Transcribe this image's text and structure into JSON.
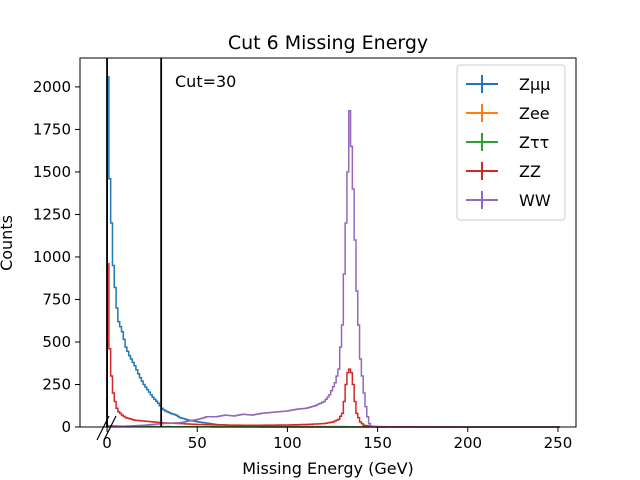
{
  "chart_data": {
    "type": "line",
    "title": "Cut 6 Missing Energy",
    "xlabel": "Missing Energy (GeV)",
    "ylabel": "Counts",
    "xlim": [
      -15,
      260
    ],
    "ylim": [
      0,
      2170
    ],
    "xticks": [
      0,
      50,
      100,
      150,
      200,
      250
    ],
    "yticks": [
      0,
      250,
      500,
      750,
      1000,
      1250,
      1500,
      1750,
      2000
    ],
    "grid": false,
    "legend_position": "top-right",
    "annotation": "Cut=30",
    "cut_lines": [
      0,
      30
    ],
    "series": [
      {
        "name": "Zμμ",
        "color": "#1f77b4",
        "points": [
          [
            0,
            2060
          ],
          [
            0.5,
            1700
          ],
          [
            1,
            1460
          ],
          [
            2,
            1200
          ],
          [
            3,
            950
          ],
          [
            4,
            820
          ],
          [
            5,
            700
          ],
          [
            6,
            620
          ],
          [
            8,
            560
          ],
          [
            10,
            470
          ],
          [
            12,
            420
          ],
          [
            15,
            360
          ],
          [
            18,
            290
          ],
          [
            20,
            250
          ],
          [
            22,
            220
          ],
          [
            25,
            175
          ],
          [
            28,
            140
          ],
          [
            30,
            110
          ],
          [
            32,
            95
          ],
          [
            35,
            80
          ],
          [
            38,
            70
          ],
          [
            40,
            55
          ],
          [
            45,
            40
          ],
          [
            50,
            30
          ],
          [
            60,
            15
          ],
          [
            70,
            8
          ],
          [
            80,
            5
          ],
          [
            90,
            4
          ],
          [
            100,
            3
          ],
          [
            130,
            2
          ],
          [
            150,
            1
          ],
          [
            200,
            0
          ],
          [
            250,
            0
          ]
        ]
      },
      {
        "name": "Zee",
        "color": "#ff7f0e",
        "points": [
          [
            0,
            8
          ],
          [
            10,
            4
          ],
          [
            30,
            2
          ],
          [
            60,
            1
          ],
          [
            100,
            0
          ],
          [
            250,
            0
          ]
        ]
      },
      {
        "name": "Zττ",
        "color": "#2ca02c",
        "points": [
          [
            0,
            6
          ],
          [
            10,
            3
          ],
          [
            30,
            2
          ],
          [
            60,
            1
          ],
          [
            100,
            0
          ],
          [
            250,
            0
          ]
        ]
      },
      {
        "name": "ZZ",
        "color": "#d62728",
        "points": [
          [
            0,
            960
          ],
          [
            0.5,
            700
          ],
          [
            1,
            460
          ],
          [
            2,
            300
          ],
          [
            3,
            200
          ],
          [
            4,
            150
          ],
          [
            5,
            110
          ],
          [
            6,
            90
          ],
          [
            8,
            70
          ],
          [
            10,
            55
          ],
          [
            15,
            40
          ],
          [
            20,
            35
          ],
          [
            25,
            30
          ],
          [
            30,
            25
          ],
          [
            40,
            20
          ],
          [
            50,
            15
          ],
          [
            60,
            12
          ],
          [
            80,
            10
          ],
          [
            100,
            12
          ],
          [
            110,
            15
          ],
          [
            120,
            20
          ],
          [
            125,
            30
          ],
          [
            128,
            45
          ],
          [
            130,
            80
          ],
          [
            131,
            150
          ],
          [
            132,
            250
          ],
          [
            133,
            320
          ],
          [
            134,
            340
          ],
          [
            135,
            320
          ],
          [
            136,
            250
          ],
          [
            137,
            150
          ],
          [
            138,
            80
          ],
          [
            140,
            30
          ],
          [
            142,
            10
          ],
          [
            145,
            5
          ],
          [
            150,
            2
          ],
          [
            200,
            0
          ],
          [
            250,
            0
          ]
        ]
      },
      {
        "name": "WW",
        "color": "#9467bd",
        "points": [
          [
            0,
            0
          ],
          [
            10,
            5
          ],
          [
            20,
            10
          ],
          [
            30,
            20
          ],
          [
            40,
            25
          ],
          [
            45,
            35
          ],
          [
            50,
            45
          ],
          [
            55,
            60
          ],
          [
            60,
            60
          ],
          [
            65,
            70
          ],
          [
            70,
            65
          ],
          [
            75,
            75
          ],
          [
            80,
            70
          ],
          [
            85,
            80
          ],
          [
            90,
            85
          ],
          [
            95,
            90
          ],
          [
            100,
            95
          ],
          [
            105,
            105
          ],
          [
            110,
            110
          ],
          [
            115,
            125
          ],
          [
            120,
            150
          ],
          [
            123,
            190
          ],
          [
            126,
            260
          ],
          [
            128,
            340
          ],
          [
            130,
            600
          ],
          [
            131,
            900
          ],
          [
            132,
            1200
          ],
          [
            133,
            1500
          ],
          [
            134,
            1860
          ],
          [
            135,
            1650
          ],
          [
            136,
            1400
          ],
          [
            137,
            1100
          ],
          [
            138,
            800
          ],
          [
            139,
            600
          ],
          [
            140,
            400
          ],
          [
            141,
            300
          ],
          [
            142,
            200
          ],
          [
            143,
            120
          ],
          [
            144,
            60
          ],
          [
            145,
            20
          ],
          [
            146,
            5
          ],
          [
            150,
            0
          ],
          [
            250,
            0
          ]
        ]
      }
    ]
  }
}
